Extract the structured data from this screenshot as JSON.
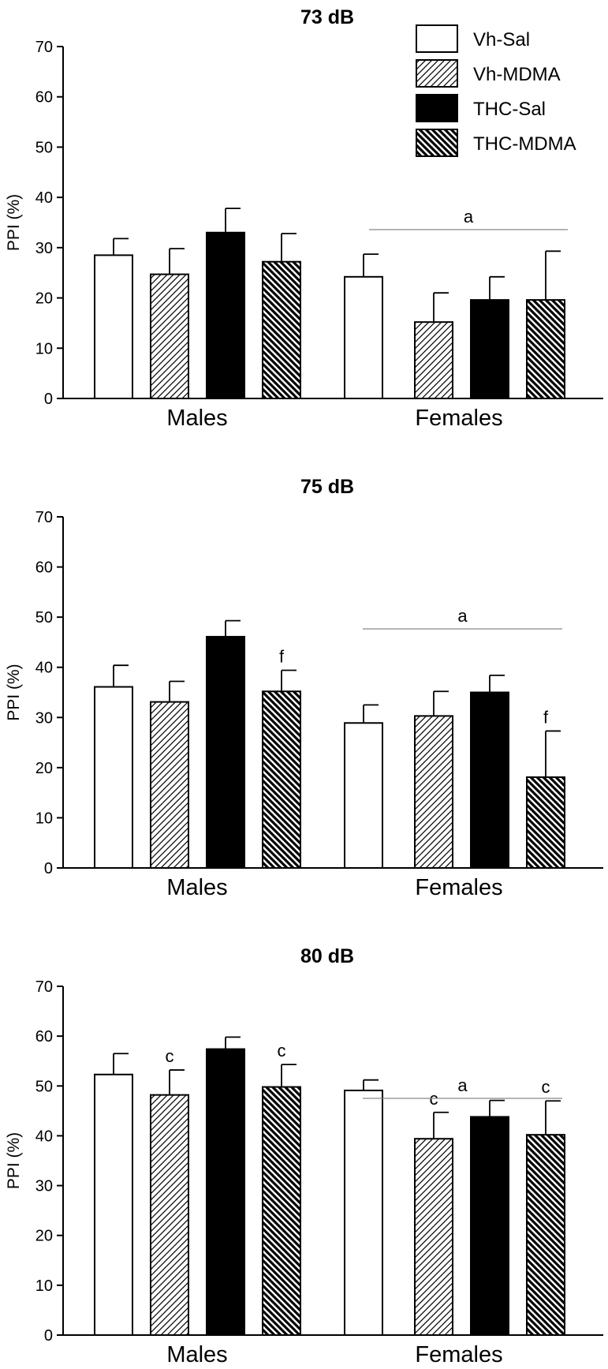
{
  "legend": [
    {
      "label": "Vh-Sal",
      "fill": "white"
    },
    {
      "label": "Vh-MDMA",
      "fill": "hatch-light"
    },
    {
      "label": "THC-Sal",
      "fill": "solid-black"
    },
    {
      "label": "THC-MDMA",
      "fill": "hatch-dense"
    }
  ],
  "chart_data": [
    {
      "type": "bar",
      "title": "73 dB",
      "ylabel": "PPI (%)",
      "ylim": [
        0,
        70
      ],
      "yticks": [
        0,
        10,
        20,
        30,
        40,
        50,
        60,
        70
      ],
      "categories": [
        "Males",
        "Females"
      ],
      "series": [
        {
          "name": "Vh-Sal",
          "values": [
            28.5,
            24.2
          ],
          "errors": [
            3.3,
            4.5
          ],
          "annotations": [
            "",
            ""
          ]
        },
        {
          "name": "Vh-MDMA",
          "values": [
            24.7,
            15.2
          ],
          "errors": [
            5.1,
            5.8
          ],
          "annotations": [
            "",
            ""
          ]
        },
        {
          "name": "THC-Sal",
          "values": [
            33.0,
            19.6
          ],
          "errors": [
            4.8,
            4.6
          ],
          "annotations": [
            "",
            ""
          ]
        },
        {
          "name": "THC-MDMA",
          "values": [
            27.2,
            19.6
          ],
          "errors": [
            5.6,
            9.7
          ],
          "annotations": [
            "",
            ""
          ]
        }
      ],
      "group_annotations": [
        "",
        "a"
      ]
    },
    {
      "type": "bar",
      "title": "75 dB",
      "ylabel": "PPI (%)",
      "ylim": [
        0,
        70
      ],
      "yticks": [
        0,
        10,
        20,
        30,
        40,
        50,
        60,
        70
      ],
      "categories": [
        "Males",
        "Females"
      ],
      "series": [
        {
          "name": "Vh-Sal",
          "values": [
            36.1,
            28.9
          ],
          "errors": [
            4.3,
            3.6
          ],
          "annotations": [
            "",
            ""
          ]
        },
        {
          "name": "Vh-MDMA",
          "values": [
            33.1,
            30.3
          ],
          "errors": [
            4.1,
            4.9
          ],
          "annotations": [
            "",
            ""
          ]
        },
        {
          "name": "THC-Sal",
          "values": [
            46.1,
            35.0
          ],
          "errors": [
            3.2,
            3.4
          ],
          "annotations": [
            "",
            ""
          ]
        },
        {
          "name": "THC-MDMA",
          "values": [
            35.2,
            18.1
          ],
          "errors": [
            4.2,
            9.2
          ],
          "annotations": [
            "f",
            "f"
          ]
        }
      ],
      "group_annotations": [
        "",
        "a"
      ]
    },
    {
      "type": "bar",
      "title": "80 dB",
      "ylabel": "PPI (%)",
      "ylim": [
        0,
        70
      ],
      "yticks": [
        0,
        10,
        20,
        30,
        40,
        50,
        60,
        70
      ],
      "categories": [
        "Males",
        "Females"
      ],
      "series": [
        {
          "name": "Vh-Sal",
          "values": [
            52.3,
            49.1
          ],
          "errors": [
            4.2,
            2.1
          ],
          "annotations": [
            "",
            ""
          ]
        },
        {
          "name": "Vh-MDMA",
          "values": [
            48.2,
            39.4
          ],
          "errors": [
            5.0,
            5.3
          ],
          "annotations": [
            "c",
            "c"
          ]
        },
        {
          "name": "THC-Sal",
          "values": [
            57.4,
            43.8
          ],
          "errors": [
            2.4,
            3.3
          ],
          "annotations": [
            "",
            ""
          ]
        },
        {
          "name": "THC-MDMA",
          "values": [
            49.8,
            40.2
          ],
          "errors": [
            4.5,
            6.8
          ],
          "annotations": [
            "c",
            "c"
          ]
        }
      ],
      "group_annotations": [
        "",
        "a"
      ]
    }
  ]
}
